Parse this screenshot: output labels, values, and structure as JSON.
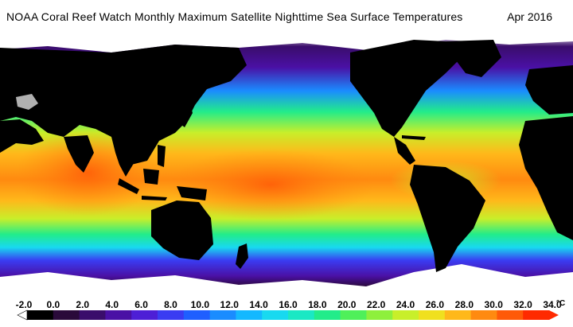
{
  "title": "NOAA Coral Reef Watch Monthly Maximum Satellite Nighttime Sea Surface Temperatures",
  "date": "Apr 2016",
  "legend": {
    "ticks": [
      "-2.0",
      "0.0",
      "2.0",
      "4.0",
      "6.0",
      "8.0",
      "10.0",
      "12.0",
      "14.0",
      "16.0",
      "18.0",
      "20.0",
      "22.0",
      "24.0",
      "26.0",
      "28.0",
      "30.0",
      "32.0",
      "34.0"
    ],
    "unit": "°C",
    "colors": [
      "#000000",
      "#2a0a3a",
      "#3a0d6b",
      "#4a10a5",
      "#4d1fd6",
      "#3a3cf2",
      "#1f5fff",
      "#1a8cff",
      "#14b8ff",
      "#18d9f0",
      "#1ae8c4",
      "#22ec8a",
      "#4ff05a",
      "#8ef03c",
      "#c8ef2a",
      "#f0e01e",
      "#ffb81a",
      "#ff8a10",
      "#ff5a08",
      "#ff2a00"
    ]
  },
  "colors": {
    "land": "#000000",
    "ice": "#ffffff",
    "background": "#ffffff"
  }
}
